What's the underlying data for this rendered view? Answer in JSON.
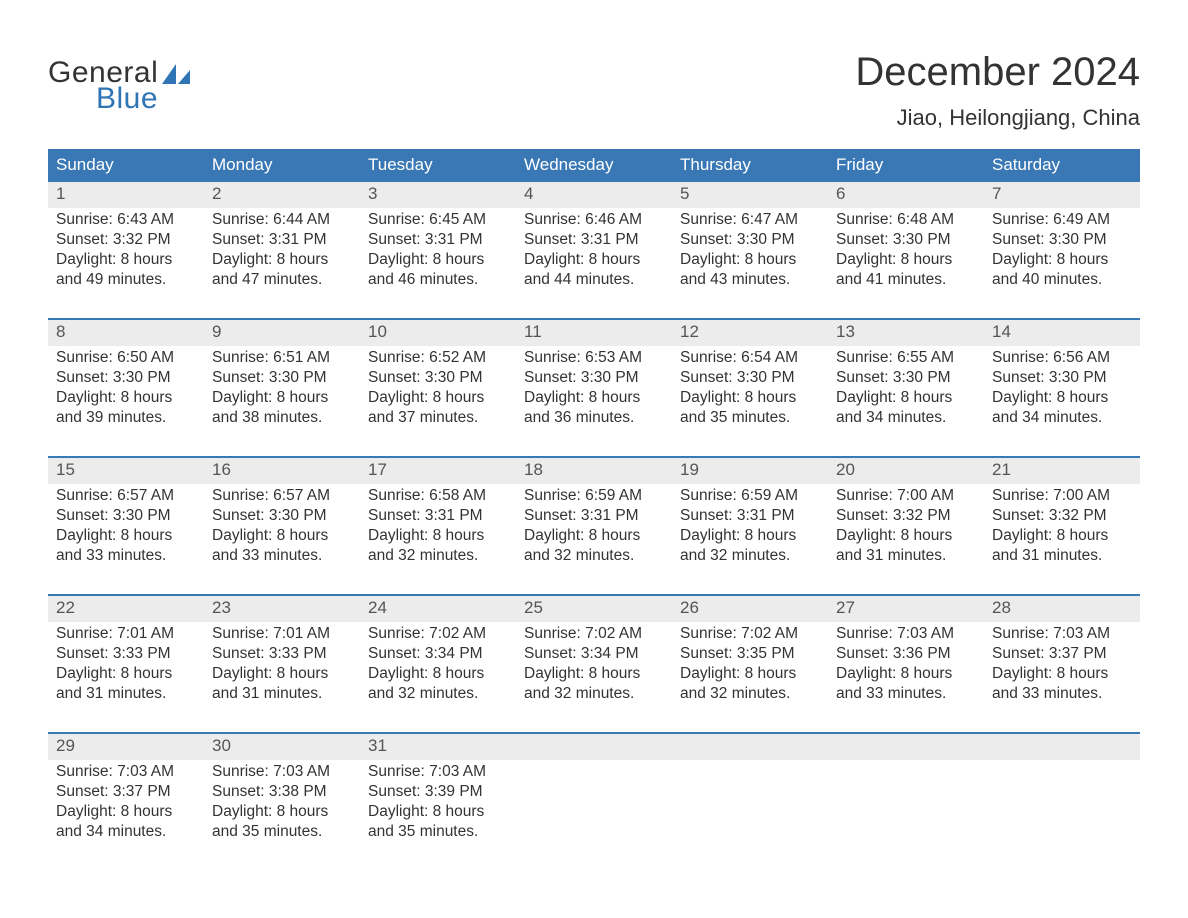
{
  "logo": {
    "word1": "General",
    "word2": "Blue",
    "text_color": "#333333",
    "blue_color": "#2f75b5"
  },
  "title": "December 2024",
  "subtitle": "Jiao, Heilongjiang, China",
  "colors": {
    "header_bg": "#3a78b5",
    "header_text": "#ffffff",
    "daynum_bg": "#ececec",
    "daynum_text": "#555555",
    "divider": "#3a78b5",
    "body_text": "#333333",
    "page_bg": "#ffffff"
  },
  "font": {
    "title_size": 40,
    "subtitle_size": 22,
    "weekday_size": 17,
    "daynum_size": 17,
    "cell_size": 15.5
  },
  "weekdays": [
    "Sunday",
    "Monday",
    "Tuesday",
    "Wednesday",
    "Thursday",
    "Friday",
    "Saturday"
  ],
  "weeks": [
    [
      {
        "n": "1",
        "sunrise": "6:43 AM",
        "sunset": "3:32 PM",
        "d1": "Daylight: 8 hours",
        "d2": "and 49 minutes."
      },
      {
        "n": "2",
        "sunrise": "6:44 AM",
        "sunset": "3:31 PM",
        "d1": "Daylight: 8 hours",
        "d2": "and 47 minutes."
      },
      {
        "n": "3",
        "sunrise": "6:45 AM",
        "sunset": "3:31 PM",
        "d1": "Daylight: 8 hours",
        "d2": "and 46 minutes."
      },
      {
        "n": "4",
        "sunrise": "6:46 AM",
        "sunset": "3:31 PM",
        "d1": "Daylight: 8 hours",
        "d2": "and 44 minutes."
      },
      {
        "n": "5",
        "sunrise": "6:47 AM",
        "sunset": "3:30 PM",
        "d1": "Daylight: 8 hours",
        "d2": "and 43 minutes."
      },
      {
        "n": "6",
        "sunrise": "6:48 AM",
        "sunset": "3:30 PM",
        "d1": "Daylight: 8 hours",
        "d2": "and 41 minutes."
      },
      {
        "n": "7",
        "sunrise": "6:49 AM",
        "sunset": "3:30 PM",
        "d1": "Daylight: 8 hours",
        "d2": "and 40 minutes."
      }
    ],
    [
      {
        "n": "8",
        "sunrise": "6:50 AM",
        "sunset": "3:30 PM",
        "d1": "Daylight: 8 hours",
        "d2": "and 39 minutes."
      },
      {
        "n": "9",
        "sunrise": "6:51 AM",
        "sunset": "3:30 PM",
        "d1": "Daylight: 8 hours",
        "d2": "and 38 minutes."
      },
      {
        "n": "10",
        "sunrise": "6:52 AM",
        "sunset": "3:30 PM",
        "d1": "Daylight: 8 hours",
        "d2": "and 37 minutes."
      },
      {
        "n": "11",
        "sunrise": "6:53 AM",
        "sunset": "3:30 PM",
        "d1": "Daylight: 8 hours",
        "d2": "and 36 minutes."
      },
      {
        "n": "12",
        "sunrise": "6:54 AM",
        "sunset": "3:30 PM",
        "d1": "Daylight: 8 hours",
        "d2": "and 35 minutes."
      },
      {
        "n": "13",
        "sunrise": "6:55 AM",
        "sunset": "3:30 PM",
        "d1": "Daylight: 8 hours",
        "d2": "and 34 minutes."
      },
      {
        "n": "14",
        "sunrise": "6:56 AM",
        "sunset": "3:30 PM",
        "d1": "Daylight: 8 hours",
        "d2": "and 34 minutes."
      }
    ],
    [
      {
        "n": "15",
        "sunrise": "6:57 AM",
        "sunset": "3:30 PM",
        "d1": "Daylight: 8 hours",
        "d2": "and 33 minutes."
      },
      {
        "n": "16",
        "sunrise": "6:57 AM",
        "sunset": "3:30 PM",
        "d1": "Daylight: 8 hours",
        "d2": "and 33 minutes."
      },
      {
        "n": "17",
        "sunrise": "6:58 AM",
        "sunset": "3:31 PM",
        "d1": "Daylight: 8 hours",
        "d2": "and 32 minutes."
      },
      {
        "n": "18",
        "sunrise": "6:59 AM",
        "sunset": "3:31 PM",
        "d1": "Daylight: 8 hours",
        "d2": "and 32 minutes."
      },
      {
        "n": "19",
        "sunrise": "6:59 AM",
        "sunset": "3:31 PM",
        "d1": "Daylight: 8 hours",
        "d2": "and 32 minutes."
      },
      {
        "n": "20",
        "sunrise": "7:00 AM",
        "sunset": "3:32 PM",
        "d1": "Daylight: 8 hours",
        "d2": "and 31 minutes."
      },
      {
        "n": "21",
        "sunrise": "7:00 AM",
        "sunset": "3:32 PM",
        "d1": "Daylight: 8 hours",
        "d2": "and 31 minutes."
      }
    ],
    [
      {
        "n": "22",
        "sunrise": "7:01 AM",
        "sunset": "3:33 PM",
        "d1": "Daylight: 8 hours",
        "d2": "and 31 minutes."
      },
      {
        "n": "23",
        "sunrise": "7:01 AM",
        "sunset": "3:33 PM",
        "d1": "Daylight: 8 hours",
        "d2": "and 31 minutes."
      },
      {
        "n": "24",
        "sunrise": "7:02 AM",
        "sunset": "3:34 PM",
        "d1": "Daylight: 8 hours",
        "d2": "and 32 minutes."
      },
      {
        "n": "25",
        "sunrise": "7:02 AM",
        "sunset": "3:34 PM",
        "d1": "Daylight: 8 hours",
        "d2": "and 32 minutes."
      },
      {
        "n": "26",
        "sunrise": "7:02 AM",
        "sunset": "3:35 PM",
        "d1": "Daylight: 8 hours",
        "d2": "and 32 minutes."
      },
      {
        "n": "27",
        "sunrise": "7:03 AM",
        "sunset": "3:36 PM",
        "d1": "Daylight: 8 hours",
        "d2": "and 33 minutes."
      },
      {
        "n": "28",
        "sunrise": "7:03 AM",
        "sunset": "3:37 PM",
        "d1": "Daylight: 8 hours",
        "d2": "and 33 minutes."
      }
    ],
    [
      {
        "n": "29",
        "sunrise": "7:03 AM",
        "sunset": "3:37 PM",
        "d1": "Daylight: 8 hours",
        "d2": "and 34 minutes."
      },
      {
        "n": "30",
        "sunrise": "7:03 AM",
        "sunset": "3:38 PM",
        "d1": "Daylight: 8 hours",
        "d2": "and 35 minutes."
      },
      {
        "n": "31",
        "sunrise": "7:03 AM",
        "sunset": "3:39 PM",
        "d1": "Daylight: 8 hours",
        "d2": "and 35 minutes."
      },
      null,
      null,
      null,
      null
    ]
  ],
  "labels": {
    "sunrise_prefix": "Sunrise: ",
    "sunset_prefix": "Sunset: "
  }
}
